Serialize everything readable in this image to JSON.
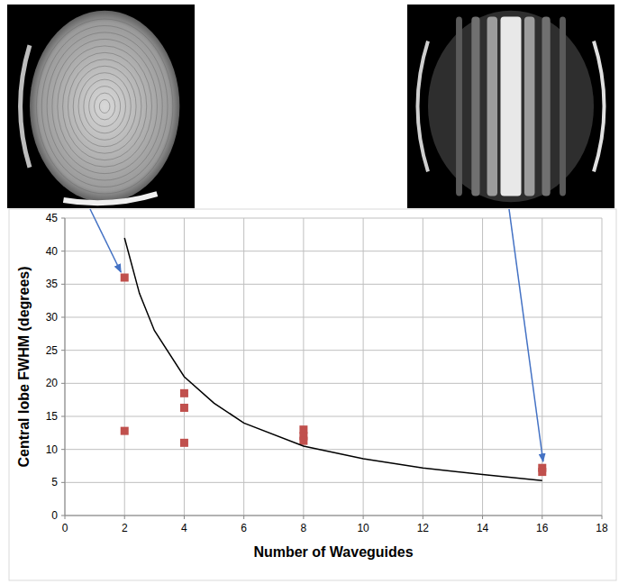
{
  "chart_data": {
    "type": "scatter",
    "x_label": "Number of Waveguides",
    "y_label": "Central lobe FWHM (degrees)",
    "xlim": [
      0,
      18
    ],
    "xticks": [
      0,
      2,
      4,
      6,
      8,
      10,
      12,
      14,
      16,
      18
    ],
    "ylim": [
      0,
      45
    ],
    "yticks": [
      0,
      5,
      10,
      15,
      20,
      25,
      30,
      35,
      40,
      45
    ],
    "grid": true,
    "series": [
      {
        "type": "scatter",
        "color": "#c0504d",
        "marker": "square",
        "x": [
          2,
          2,
          4,
          4,
          4,
          8,
          8,
          8,
          16,
          16
        ],
        "values": [
          36,
          12.8,
          18.5,
          16.3,
          11,
          13,
          12,
          11.3,
          7.2,
          6.6
        ]
      },
      {
        "type": "line",
        "color": "#000000",
        "line_style": "solid",
        "x": [
          2,
          2.5,
          3,
          4,
          5,
          6,
          8,
          10,
          12,
          14,
          16
        ],
        "values": [
          42,
          33.6,
          28,
          21,
          17,
          14,
          10.5,
          8.6,
          7.2,
          6.2,
          5.3
        ]
      }
    ]
  }
}
